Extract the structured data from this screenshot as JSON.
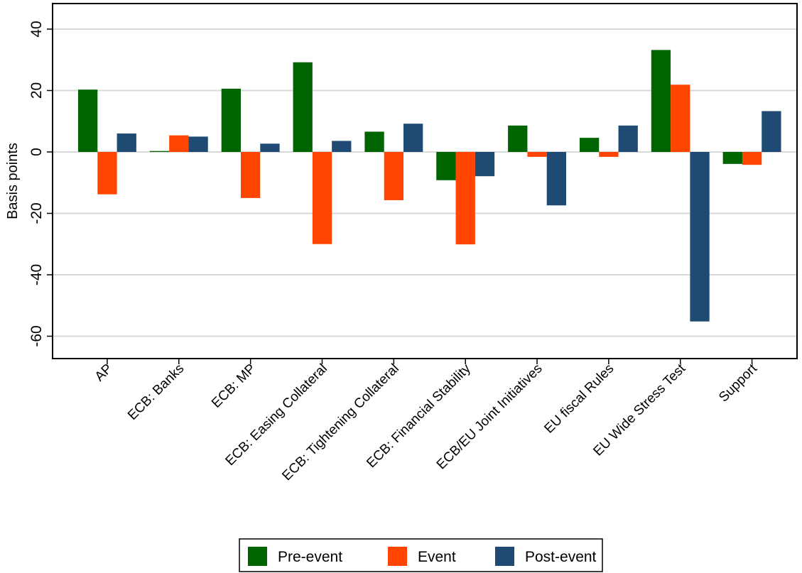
{
  "chart_data": {
    "type": "bar",
    "ylabel": "Basis points",
    "ylim": [
      -67,
      45
    ],
    "yticks": [
      40,
      20,
      0,
      -20,
      -40,
      -60
    ],
    "grid": true,
    "legend_position": "bottom",
    "categories": [
      "AP",
      "ECB: Banks",
      "ECB: MP",
      "ECB: Easing Collateral",
      "ECB: Tightening Collateral",
      "ECB: Financial Stability",
      "ECB/EU Joint Initiatives",
      "EU fiscal Rules",
      "EU Wide Stress Test",
      "Support"
    ],
    "series": [
      {
        "name": "Pre-event",
        "color": "#006400",
        "values": [
          20.3,
          0.3,
          20.6,
          29.2,
          6.6,
          -9.2,
          8.6,
          4.6,
          33.2,
          -3.9
        ]
      },
      {
        "name": "Event",
        "color": "#ff4500",
        "values": [
          -13.8,
          5.4,
          -15.0,
          -30.0,
          -15.7,
          -30.1,
          -1.6,
          -1.6,
          21.9,
          -4.2
        ]
      },
      {
        "name": "Post-event",
        "color": "#1f4a73",
        "values": [
          6.0,
          5.0,
          2.7,
          3.6,
          9.2,
          -7.9,
          -17.4,
          8.6,
          -55.2,
          13.3
        ]
      }
    ]
  }
}
